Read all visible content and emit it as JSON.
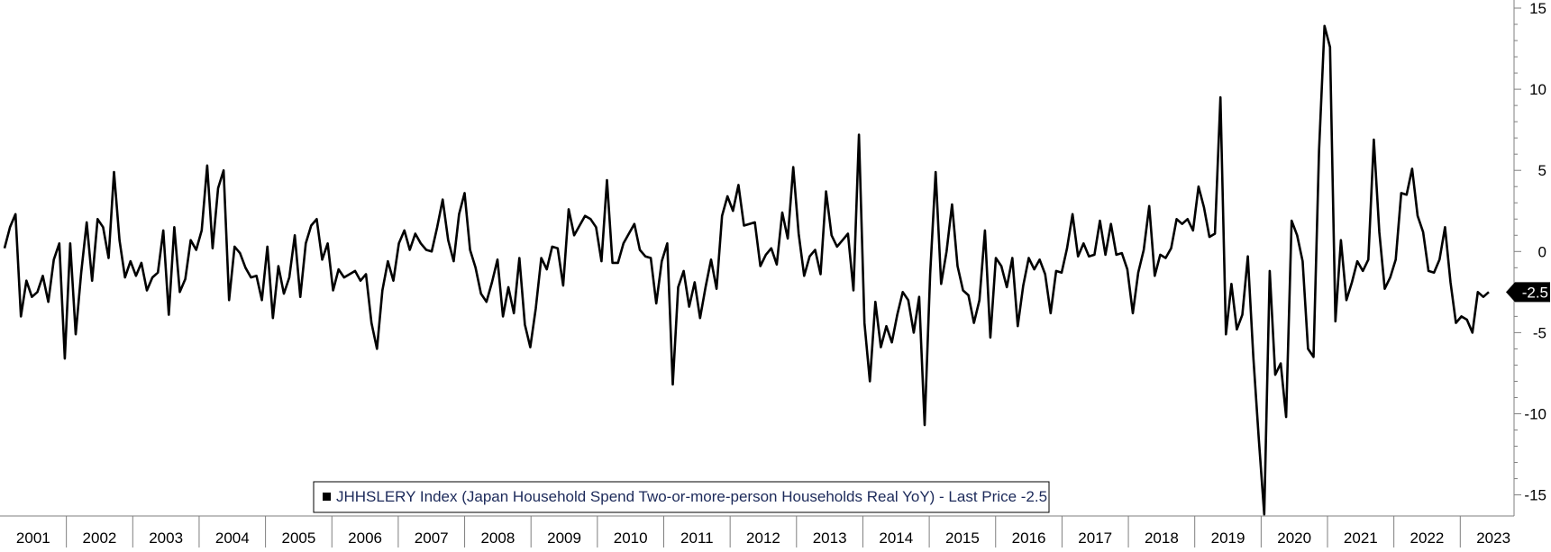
{
  "chart_data": {
    "type": "line",
    "title": "",
    "legend": {
      "text": "JHHSLERY Index (Japan Household Spend Two-or-more-person Households Real YoY) - Last Price -2.5",
      "placement": "bottom-center"
    },
    "yaxis": {
      "position": "right",
      "ylim": [
        -16.3,
        15.5
      ],
      "ticks": [
        15,
        10,
        5,
        0,
        -5,
        -10,
        -15
      ],
      "tick_labels": [
        "15",
        "10",
        "5",
        "0",
        "-5",
        "-10",
        "-15"
      ]
    },
    "xaxis": {
      "year_labels": [
        "2001",
        "2002",
        "2003",
        "2004",
        "2005",
        "2006",
        "2007",
        "2008",
        "2009",
        "2010",
        "2011",
        "2012",
        "2013",
        "2014",
        "2015",
        "2016",
        "2017",
        "2018",
        "2019",
        "2020",
        "2021",
        "2022",
        "2023"
      ]
    },
    "last_value_label": "-2.5",
    "colors": {
      "line": "#000000",
      "axis": "#7f7f7f",
      "badge": "#000000"
    },
    "series": [
      {
        "values": [
          0.2,
          1.5,
          2.3,
          -4.0,
          -1.8,
          -2.8,
          -2.5,
          -1.5,
          -3.1,
          -0.5,
          0.5,
          -6.6,
          0.5,
          -5.1,
          -1.3,
          1.8,
          -1.8,
          2.0,
          1.5,
          -0.4,
          4.9,
          0.7,
          -1.6,
          -0.6,
          -1.5,
          -0.7,
          -2.4,
          -1.6,
          -1.3,
          1.3,
          -3.9,
          1.5,
          -2.5,
          -1.7,
          0.7,
          0.1,
          1.3,
          5.3,
          0.2,
          3.9,
          5.0,
          -3.0,
          0.3,
          -0.1,
          -1.0,
          -1.6,
          -1.5,
          -3.0,
          0.3,
          -4.1,
          -0.9,
          -2.6,
          -1.6,
          1.0,
          -2.8,
          0.5,
          1.6,
          2.0,
          -0.5,
          0.5,
          -2.4,
          -1.1,
          -1.6,
          -1.4,
          -1.2,
          -1.8,
          -1.4,
          -4.4,
          -6.0,
          -2.4,
          -0.6,
          -1.8,
          0.5,
          1.3,
          0.1,
          1.1,
          0.5,
          0.1,
          0.0,
          1.5,
          3.2,
          0.7,
          -0.6,
          2.3,
          3.6,
          0.1,
          -1.0,
          -2.6,
          -3.1,
          -1.9,
          -0.5,
          -4.0,
          -2.2,
          -3.8,
          -0.4,
          -4.5,
          -5.9,
          -3.5,
          -0.4,
          -1.1,
          0.3,
          0.2,
          -2.1,
          2.6,
          1.0,
          1.6,
          2.2,
          2.0,
          1.5,
          -0.6,
          4.4,
          -0.7,
          -0.7,
          0.5,
          1.1,
          1.7,
          0.1,
          -0.3,
          -0.4,
          -3.2,
          -0.6,
          0.5,
          -8.2,
          -2.2,
          -1.2,
          -3.4,
          -1.9,
          -4.1,
          -2.2,
          -0.5,
          -2.3,
          2.2,
          3.4,
          2.5,
          4.1,
          1.6,
          1.7,
          1.8,
          -0.9,
          -0.2,
          0.2,
          -0.8,
          2.4,
          0.8,
          5.2,
          1.1,
          -1.5,
          -0.3,
          0.1,
          -1.4,
          3.7,
          1.0,
          0.3,
          0.7,
          1.1,
          -2.4,
          7.2,
          -4.4,
          -8.0,
          -3.1,
          -5.9,
          -4.6,
          -5.6,
          -3.9,
          -2.5,
          -3.0,
          -5.0,
          -2.8,
          -10.7,
          -1.4,
          4.9,
          -2.0,
          0.0,
          2.9,
          -0.9,
          -2.4,
          -2.7,
          -4.4,
          -3.0,
          1.3,
          -5.3,
          -0.4,
          -0.9,
          -2.2,
          -0.4,
          -4.6,
          -2.1,
          -0.4,
          -1.1,
          -0.5,
          -1.4,
          -3.8,
          -1.2,
          -1.3,
          0.2,
          2.3,
          -0.3,
          0.5,
          -0.3,
          -0.2,
          1.9,
          -0.2,
          1.7,
          -0.2,
          -0.1,
          -1.1,
          -3.8,
          -1.3,
          0.1,
          2.8,
          -1.5,
          -0.2,
          -0.4,
          0.2,
          2.0,
          1.7,
          2.0,
          1.3,
          4.0,
          2.7,
          0.9,
          1.1,
          9.5,
          -5.1,
          -2.0,
          -4.8,
          -3.9,
          -0.3,
          -6.5,
          -11.5,
          -16.2,
          -1.2,
          -7.6,
          -6.9,
          -10.2,
          1.9,
          1.0,
          -0.6,
          -6.0,
          -6.5,
          6.2,
          13.9,
          12.6,
          -4.3,
          0.7,
          -3.0,
          -1.9,
          -0.6,
          -1.2,
          -0.5,
          6.9,
          1.2,
          -2.3,
          -1.6,
          -0.5,
          3.6,
          3.5,
          5.1,
          2.2,
          1.2,
          -1.2,
          -1.3,
          -0.5,
          1.5,
          -1.9,
          -4.4,
          -4.0,
          -4.2,
          -5.0,
          -2.5,
          -2.8,
          -2.5
        ]
      }
    ]
  }
}
